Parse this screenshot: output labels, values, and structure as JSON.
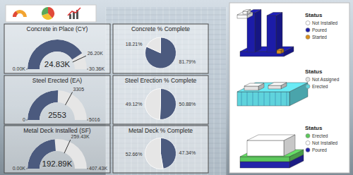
{
  "chart_data": [
    {
      "type": "gauge",
      "title": "Concrete in Place (CY)",
      "values": [
        24.83
      ],
      "value_labels": [
        "24.83K"
      ],
      "ylim": [
        0,
        30.36
      ],
      "yticks": [
        {
          "value": 0,
          "label": "0.00K"
        },
        {
          "value": 30.36,
          "label": "30.36K"
        }
      ],
      "target": {
        "value": 26.2,
        "label": "26.20K"
      },
      "color": "#4b5a7e"
    },
    {
      "type": "gauge",
      "title": "Steel Erected (EA)",
      "values": [
        2553
      ],
      "ylim": [
        0,
        5016
      ],
      "yticks": [
        0,
        5016
      ],
      "target": 3305,
      "color": "#4b5a7e"
    },
    {
      "type": "gauge",
      "title": "Metal Deck Installed (SF)",
      "values": [
        192.89
      ],
      "value_labels": [
        "192.89K"
      ],
      "ylim": [
        0,
        407.43
      ],
      "yticks": [
        {
          "value": 0,
          "label": "0.00K"
        },
        {
          "value": 407.43,
          "label": "407.43K"
        }
      ],
      "target": {
        "value": 259.43,
        "label": "259.43K"
      },
      "color": "#4b5a7e"
    },
    {
      "type": "pie",
      "title": "Concrete % Complete",
      "values": [
        81.79,
        18.21
      ],
      "value_labels": [
        "81.79%",
        "18.21%"
      ],
      "colors": [
        "#4b5a7e",
        "#e6e6e6"
      ],
      "data_labels": true
    },
    {
      "type": "pie",
      "title": "Steel Erection % Complete",
      "values": [
        50.88,
        49.12
      ],
      "value_labels": [
        "50.88%",
        "49.12%"
      ],
      "colors": [
        "#4b5a7e",
        "#e6e6e6"
      ],
      "data_labels": true
    },
    {
      "type": "pie",
      "title": "Metal Deck % Complete",
      "values": [
        47.34,
        52.66
      ],
      "value_labels": [
        "47.34%",
        "52.66%"
      ],
      "colors": [
        "#4b5a7e",
        "#e6e6e6"
      ],
      "data_labels": true
    }
  ],
  "models": [
    {
      "legend_title": "Status",
      "items": [
        {
          "label": "Not Installed",
          "color": "#ffffff"
        },
        {
          "label": "Poured",
          "color": "#1c1ca8"
        },
        {
          "label": "Started",
          "color": "#d9901c"
        }
      ]
    },
    {
      "legend_title": "Status",
      "items": [
        {
          "label": "Not Assigned",
          "color": "#e2e2e2"
        },
        {
          "label": "Erected",
          "color": "#5fd3dc"
        }
      ]
    },
    {
      "legend_title": "Status",
      "items": [
        {
          "label": "Erected",
          "color": "#5cc85c"
        },
        {
          "label": "Not Installed",
          "color": "#ffffff"
        },
        {
          "label": "Poured",
          "color": "#2424aa"
        }
      ]
    }
  ]
}
